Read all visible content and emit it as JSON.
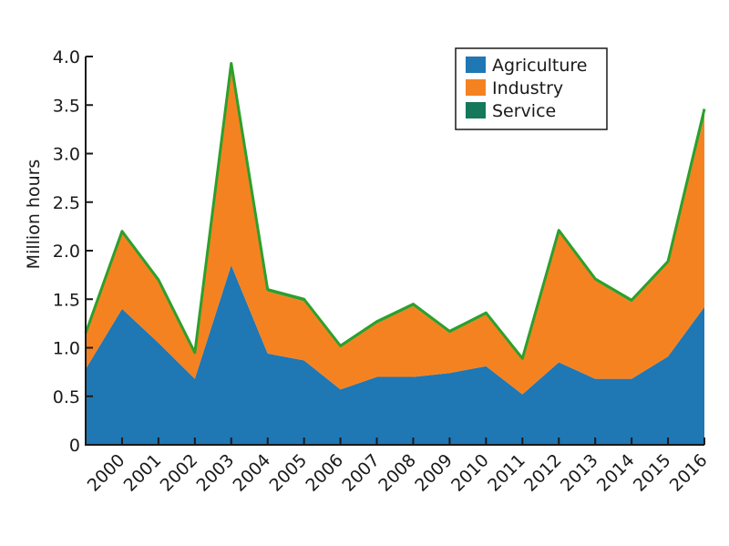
{
  "chart_data": {
    "type": "area",
    "stacked": true,
    "title": "",
    "xlabel": "",
    "ylabel": "Million hours",
    "ylim": [
      0,
      4.0
    ],
    "yticks": [
      0,
      0.5,
      1.0,
      1.5,
      2.0,
      2.5,
      3.0,
      3.5,
      4.0
    ],
    "ytick_labels": [
      "0",
      "0.5",
      "1.0",
      "1.5",
      "2.0",
      "2.5",
      "3.0",
      "3.5",
      "4.0"
    ],
    "x": [
      1999,
      2000,
      2001,
      2002,
      2003,
      2004,
      2005,
      2006,
      2007,
      2008,
      2009,
      2010,
      2011,
      2012,
      2013,
      2014,
      2015,
      2016
    ],
    "xtick_labels": [
      "2000",
      "2001",
      "2002",
      "2003",
      "2004",
      "2005",
      "2006",
      "2007",
      "2008",
      "2009",
      "2010",
      "2011",
      "2012",
      "2013",
      "2014",
      "2015",
      "2016"
    ],
    "grid": false,
    "legend_position": "top-right",
    "series": [
      {
        "name": "Agriculture",
        "color": "#1f77b4",
        "values": [
          0.78,
          1.4,
          1.05,
          0.68,
          1.85,
          0.94,
          0.87,
          0.57,
          0.7,
          0.7,
          0.74,
          0.81,
          0.52,
          0.85,
          0.68,
          0.68,
          0.91,
          1.42
        ]
      },
      {
        "name": "Industry",
        "color": "#f58220",
        "values": [
          0.35,
          0.78,
          0.63,
          0.25,
          2.05,
          0.64,
          0.61,
          0.43,
          0.55,
          0.73,
          0.41,
          0.53,
          0.35,
          1.34,
          1.01,
          0.79,
          0.96,
          1.96
        ]
      },
      {
        "name": "Service",
        "color": "#2ca02c",
        "legend_color": "#16785a",
        "values": [
          0.02,
          0.02,
          0.02,
          0.02,
          0.03,
          0.02,
          0.02,
          0.02,
          0.02,
          0.02,
          0.02,
          0.02,
          0.02,
          0.02,
          0.02,
          0.02,
          0.02,
          0.08
        ]
      }
    ]
  }
}
